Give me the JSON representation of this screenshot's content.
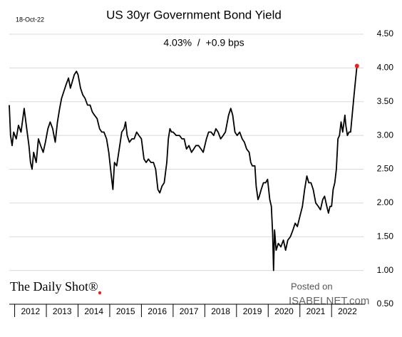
{
  "chart_data": {
    "type": "line",
    "date": "18-Oct-22",
    "title": "US 30yr Government Bond Yield",
    "subtitle": "4.03%  /  +0.9 bps",
    "branding": "The Daily Shot®",
    "posted_on": "Posted on",
    "source": "ISABELNET.com",
    "color": "#000000",
    "marker_color": "#e8231e",
    "grid": true,
    "xlim": [
      2011.83,
      2022.85
    ],
    "xticks": [
      2012,
      2013,
      2014,
      2015,
      2016,
      2017,
      2018,
      2019,
      2020,
      2021,
      2022
    ],
    "ylim": [
      0.5,
      4.5
    ],
    "yticks": [
      {
        "value": 0.5,
        "label": "0.50"
      },
      {
        "value": 1,
        "label": "1.00"
      },
      {
        "value": 1.5,
        "label": "1.50"
      },
      {
        "value": 2,
        "label": "2.00"
      },
      {
        "value": 2.5,
        "label": "2.50"
      },
      {
        "value": 3,
        "label": "3.00"
      },
      {
        "value": 3.5,
        "label": "3.50"
      },
      {
        "value": 4,
        "label": "4.00"
      },
      {
        "value": 4.5,
        "label": "4.50"
      }
    ],
    "x": [
      2011.83,
      2011.87,
      2011.92,
      2011.97,
      2012.05,
      2012.12,
      2012.2,
      2012.3,
      2012.38,
      2012.45,
      2012.5,
      2012.55,
      2012.6,
      2012.68,
      2012.75,
      2012.82,
      2012.9,
      2012.97,
      2013.05,
      2013.12,
      2013.2,
      2013.28,
      2013.35,
      2013.42,
      2013.48,
      2013.55,
      2013.62,
      2013.7,
      2013.76,
      2013.82,
      2013.88,
      2013.95,
      2014.0,
      2014.08,
      2014.15,
      2014.22,
      2014.3,
      2014.38,
      2014.45,
      2014.52,
      2014.6,
      2014.68,
      2014.75,
      2014.82,
      2014.9,
      2014.97,
      2015.05,
      2015.1,
      2015.15,
      2015.22,
      2015.3,
      2015.38,
      2015.45,
      2015.5,
      2015.55,
      2015.62,
      2015.7,
      2015.77,
      2015.85,
      2015.92,
      2016.0,
      2016.08,
      2016.15,
      2016.22,
      2016.3,
      2016.38,
      2016.45,
      2016.52,
      2016.58,
      2016.65,
      2016.72,
      2016.8,
      2016.85,
      2016.9,
      2016.95,
      2017.0,
      2017.1,
      2017.2,
      2017.28,
      2017.35,
      2017.42,
      2017.5,
      2017.58,
      2017.65,
      2017.72,
      2017.8,
      2017.88,
      2017.95,
      2018.05,
      2018.12,
      2018.2,
      2018.28,
      2018.35,
      2018.42,
      2018.5,
      2018.58,
      2018.65,
      2018.75,
      2018.82,
      2018.88,
      2018.95,
      2019.02,
      2019.1,
      2019.18,
      2019.25,
      2019.32,
      2019.4,
      2019.45,
      2019.5,
      2019.58,
      2019.62,
      2019.68,
      2019.72,
      2019.78,
      2019.85,
      2019.92,
      2019.98,
      2020.05,
      2020.1,
      2020.14,
      2020.17,
      2020.2,
      2020.25,
      2020.32,
      2020.4,
      2020.48,
      2020.55,
      2020.62,
      2020.7,
      2020.78,
      2020.85,
      2020.92,
      2021.0,
      2021.08,
      2021.15,
      2021.22,
      2021.28,
      2021.35,
      2021.42,
      2021.5,
      2021.58,
      2021.65,
      2021.72,
      2021.78,
      2021.85,
      2021.9,
      2021.95,
      2022.0,
      2022.05,
      2022.1,
      2022.15,
      2022.2,
      2022.25,
      2022.3,
      2022.35,
      2022.42,
      2022.45,
      2022.5,
      2022.55,
      2022.6,
      2022.65,
      2022.7,
      2022.75,
      2022.8
    ],
    "values": [
      3.45,
      3.0,
      2.85,
      3.05,
      2.95,
      3.15,
      3.05,
      3.4,
      3.1,
      2.85,
      2.6,
      2.5,
      2.75,
      2.6,
      2.95,
      2.85,
      2.75,
      2.9,
      3.1,
      3.2,
      3.1,
      2.9,
      3.2,
      3.4,
      3.55,
      3.65,
      3.75,
      3.85,
      3.7,
      3.8,
      3.9,
      3.95,
      3.9,
      3.7,
      3.6,
      3.55,
      3.45,
      3.45,
      3.35,
      3.3,
      3.25,
      3.1,
      3.05,
      3.05,
      2.95,
      2.75,
      2.4,
      2.2,
      2.6,
      2.55,
      2.8,
      3.05,
      3.1,
      3.2,
      3.0,
      2.9,
      2.95,
      2.95,
      3.05,
      3.0,
      2.95,
      2.65,
      2.6,
      2.65,
      2.6,
      2.6,
      2.5,
      2.2,
      2.15,
      2.25,
      2.3,
      2.6,
      2.95,
      3.1,
      3.05,
      3.05,
      3.0,
      3.0,
      2.95,
      2.95,
      2.8,
      2.85,
      2.75,
      2.8,
      2.85,
      2.85,
      2.8,
      2.75,
      2.95,
      3.05,
      3.05,
      3.0,
      3.1,
      3.05,
      2.95,
      3.0,
      3.05,
      3.3,
      3.4,
      3.3,
      3.05,
      3.0,
      3.05,
      2.95,
      2.9,
      2.8,
      2.75,
      2.6,
      2.55,
      2.55,
      2.25,
      2.05,
      2.1,
      2.2,
      2.3,
      2.3,
      2.35,
      2.05,
      1.95,
      1.55,
      1.0,
      1.6,
      1.3,
      1.4,
      1.35,
      1.45,
      1.3,
      1.45,
      1.5,
      1.6,
      1.7,
      1.65,
      1.8,
      1.95,
      2.2,
      2.4,
      2.3,
      2.3,
      2.2,
      2.0,
      1.95,
      1.9,
      2.05,
      2.1,
      1.95,
      1.85,
      1.95,
      1.95,
      2.2,
      2.3,
      2.5,
      2.95,
      3.0,
      3.2,
      3.05,
      3.3,
      3.15,
      3.0,
      3.05,
      3.05,
      3.3,
      3.55,
      3.8,
      4.03
    ]
  }
}
